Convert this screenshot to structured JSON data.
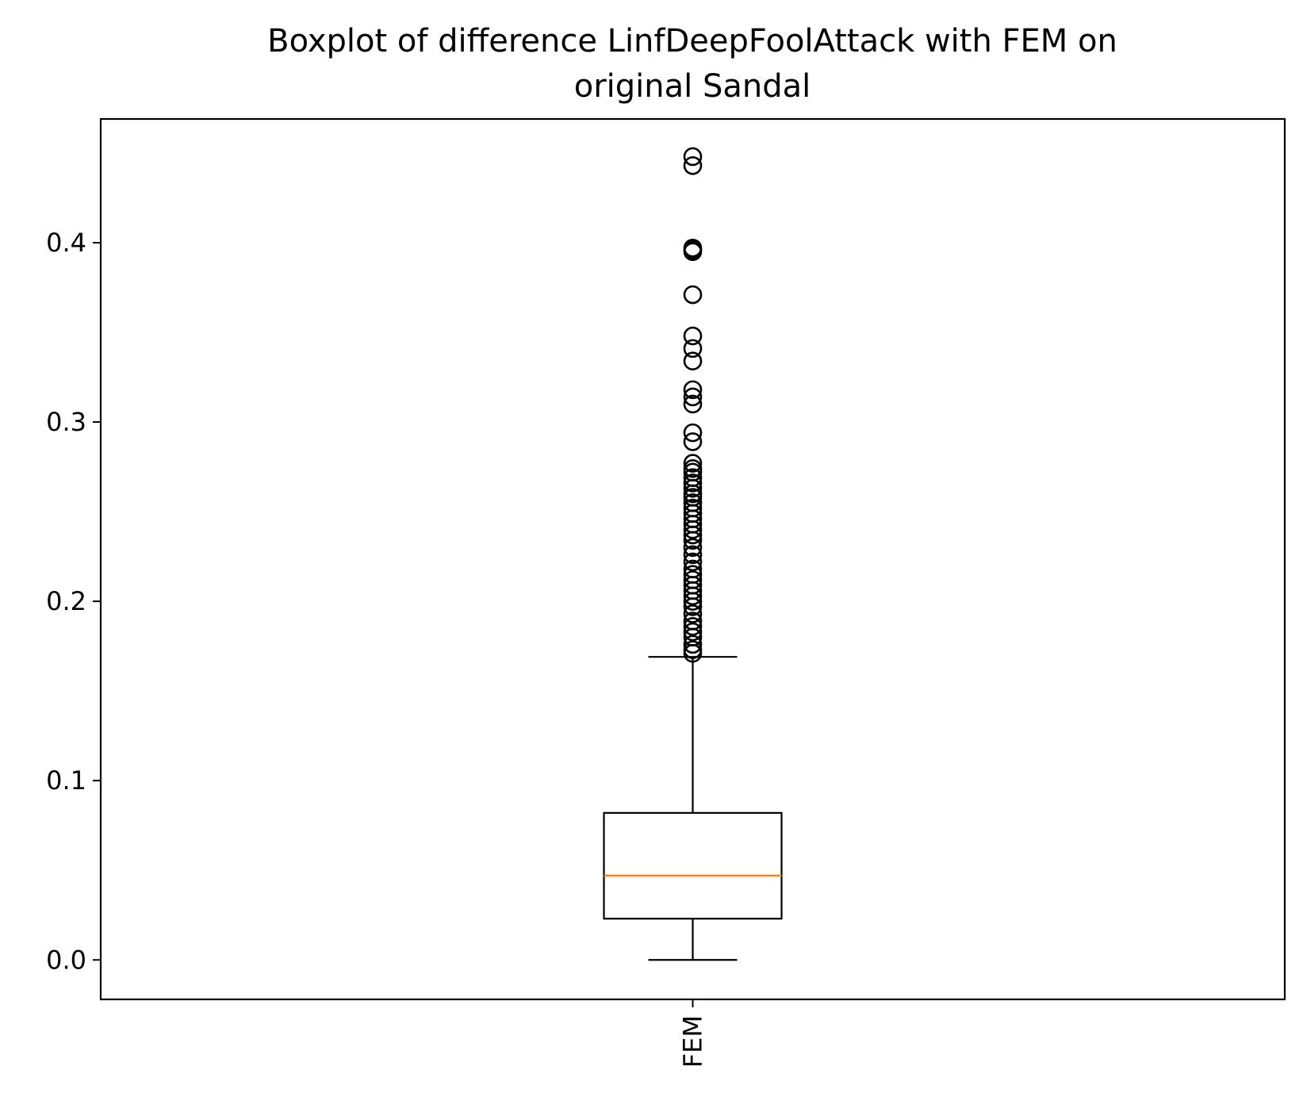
{
  "chart_data": {
    "type": "boxplot",
    "title_lines": [
      "Boxplot of difference LinfDeepFoolAttack with FEM on",
      "original Sandal"
    ],
    "xlabel": "",
    "ylabel": "",
    "categories": [
      "FEM"
    ],
    "ylim": [
      -0.022,
      0.469
    ],
    "yticks": [
      0.0,
      0.1,
      0.2,
      0.3,
      0.4
    ],
    "ytick_labels": [
      "0.0",
      "0.1",
      "0.2",
      "0.3",
      "0.4"
    ],
    "grid": false,
    "box": {
      "whisker_low": 0.0,
      "q1": 0.023,
      "median": 0.047,
      "q3": 0.082,
      "whisker_high": 0.169
    },
    "outliers": [
      0.448,
      0.443,
      0.397,
      0.396,
      0.395,
      0.371,
      0.348,
      0.341,
      0.334,
      0.318,
      0.314,
      0.31,
      0.294,
      0.289,
      0.277,
      0.274,
      0.272,
      0.269,
      0.266,
      0.263,
      0.26,
      0.258,
      0.255,
      0.252,
      0.249,
      0.246,
      0.243,
      0.24,
      0.237,
      0.234,
      0.23,
      0.226,
      0.222,
      0.218,
      0.215,
      0.212,
      0.209,
      0.206,
      0.203,
      0.2,
      0.197,
      0.193,
      0.189,
      0.186,
      0.183,
      0.18,
      0.176,
      0.173,
      0.171
    ],
    "colors": {
      "box": "#000000",
      "median": "#ff7f0e",
      "outlier": "#000000"
    }
  }
}
